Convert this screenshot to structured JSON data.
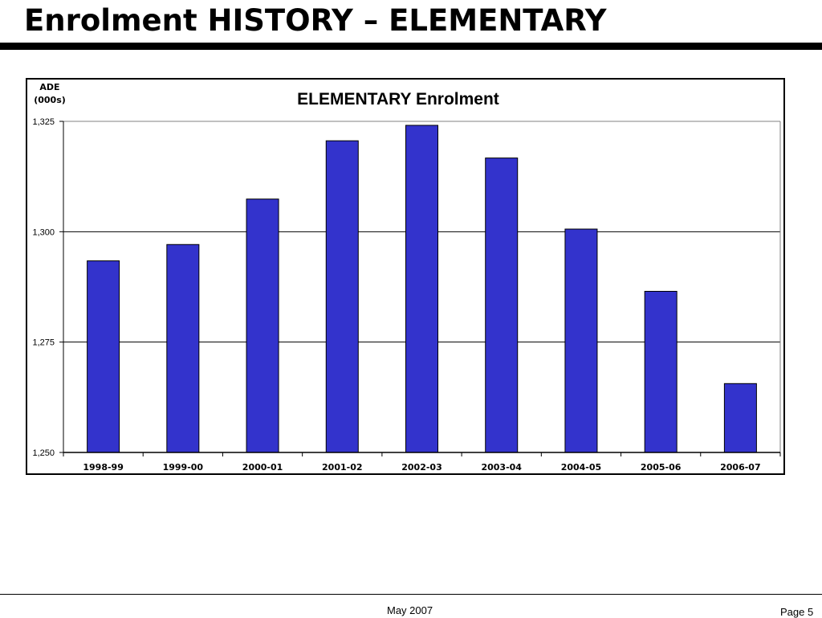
{
  "slide": {
    "title": "Enrolment HISTORY – ELEMENTARY"
  },
  "footer": {
    "date": "May 2007",
    "page": "Page 5"
  },
  "colors": {
    "bar_fill": "#3333cc",
    "bar_stroke": "#000000",
    "grid": "#000000"
  },
  "chart_data": {
    "type": "bar",
    "title": "ELEMENTARY Enrolment",
    "ylabel_lines": [
      "ADE",
      "(000s)"
    ],
    "xlabel": "",
    "categories": [
      "1998-99",
      "1999-00",
      "2000-01",
      "2001-02",
      "2002-03",
      "2003-04",
      "2004-05",
      "2005-06",
      "2006-07"
    ],
    "values": [
      1293.4,
      1297.1,
      1307.4,
      1320.6,
      1324.1,
      1316.7,
      1300.6,
      1286.5,
      1265.6
    ],
    "ylim": [
      1250,
      1325
    ],
    "yticks": [
      1250,
      1275,
      1300,
      1325
    ],
    "ytick_labels": [
      "1,250",
      "1,275",
      "1,300",
      "1,325"
    ],
    "grid": true,
    "legend": "none"
  }
}
